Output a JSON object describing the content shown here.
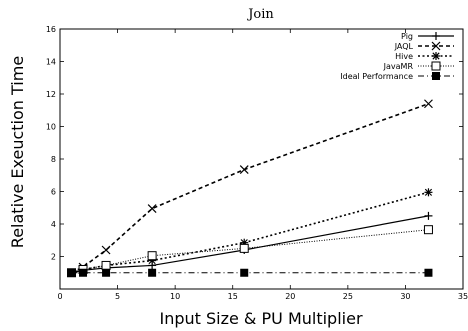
{
  "chart_data": {
    "type": "line",
    "title": "Join",
    "xlabel": "Input Size & PU Multiplier",
    "ylabel": "Relative Exeuction Time",
    "xlim": [
      0,
      35
    ],
    "ylim": [
      0,
      16
    ],
    "xticks": [
      0,
      5,
      10,
      15,
      20,
      25,
      30,
      35
    ],
    "yticks": [
      2,
      4,
      6,
      8,
      10,
      12,
      14,
      16
    ],
    "grid": false,
    "legend_position": "top-right",
    "series": [
      {
        "name": "Pig",
        "style": "solid",
        "marker": "plus",
        "x": [
          1,
          2,
          4,
          8,
          16,
          32
        ],
        "y": [
          1.0,
          1.15,
          1.3,
          1.45,
          2.4,
          4.5
        ]
      },
      {
        "name": "JAQL",
        "style": "dashed",
        "marker": "cross",
        "x": [
          1,
          2,
          4,
          8,
          16,
          32
        ],
        "y": [
          1.0,
          1.35,
          2.4,
          4.95,
          7.35,
          11.4
        ]
      },
      {
        "name": "Hive",
        "style": "dotted",
        "marker": "star",
        "x": [
          1,
          2,
          4,
          8,
          16,
          32
        ],
        "y": [
          1.0,
          1.2,
          1.45,
          1.75,
          2.85,
          5.95
        ]
      },
      {
        "name": "JavaMR",
        "style": "fine-dotted",
        "marker": "open-square",
        "x": [
          1,
          2,
          4,
          8,
          16,
          32
        ],
        "y": [
          1.0,
          1.2,
          1.45,
          2.05,
          2.5,
          3.65
        ]
      },
      {
        "name": "Ideal Performance",
        "style": "dash-dot",
        "marker": "filled-square",
        "x": [
          1,
          2,
          4,
          8,
          16,
          32
        ],
        "y": [
          1.0,
          1.0,
          1.0,
          1.0,
          1.0,
          1.0
        ]
      }
    ]
  }
}
